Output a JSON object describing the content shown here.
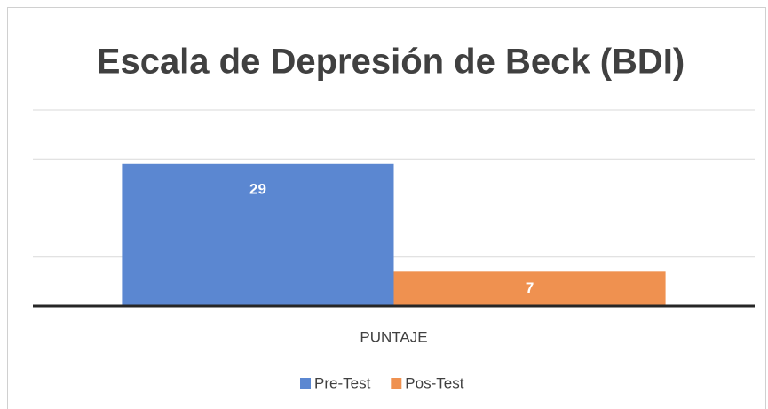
{
  "chart_data": {
    "type": "bar",
    "title": "Escala de Depresión de Beck (BDI)",
    "categories": [
      "PUNTAJE"
    ],
    "series": [
      {
        "name": "Pre-Test",
        "color": "#5b87d1",
        "values": [
          29
        ]
      },
      {
        "name": "Pos-Test",
        "color": "#ef9150",
        "values": [
          7
        ]
      }
    ],
    "ylim": [
      0,
      40
    ],
    "yticks": [
      0,
      10,
      20,
      30,
      40
    ],
    "grid": true,
    "legend": "bottom"
  }
}
